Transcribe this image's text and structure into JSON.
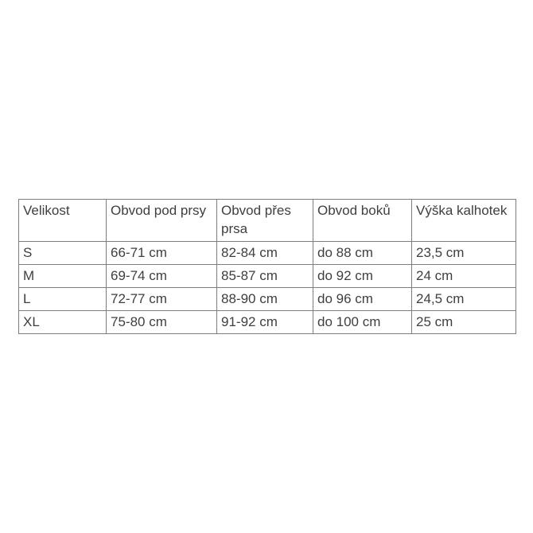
{
  "table": {
    "columns": [
      {
        "label": "Velikost"
      },
      {
        "label": "Obvod pod prsy"
      },
      {
        "label": "Obvod přes prsa"
      },
      {
        "label": "Obvod boků"
      },
      {
        "label": "Výška kalhotek"
      }
    ],
    "rows": [
      {
        "cells": [
          "S",
          "66-71 cm",
          "82-84 cm",
          "do 88 cm",
          "23,5 cm"
        ]
      },
      {
        "cells": [
          "M",
          "69-74 cm",
          "85-87 cm",
          "do 92 cm",
          "24 cm"
        ]
      },
      {
        "cells": [
          "L",
          "72-77 cm",
          "88-90 cm",
          "do 96 cm",
          "24,5 cm"
        ]
      },
      {
        "cells": [
          "XL",
          "75-80 cm",
          "91-92 cm",
          "do 100 cm",
          "25 cm"
        ]
      }
    ],
    "colors": {
      "border": "#7d7d7d",
      "text": "#3f3f3f",
      "background": "#ffffff"
    }
  }
}
